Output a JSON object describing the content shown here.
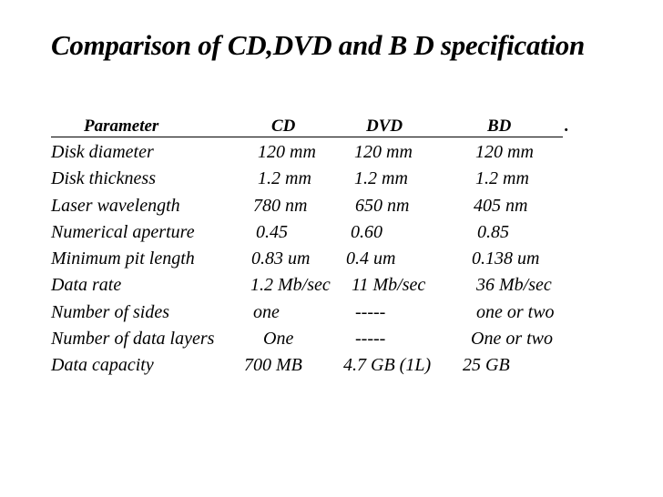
{
  "title": "Comparison of CD,DVD and B D specification",
  "table": {
    "headers": [
      "Parameter",
      "CD",
      "DVD",
      "BD"
    ],
    "header_trailing_mark": ".",
    "rows": [
      [
        "Disk diameter",
        "120 mm",
        "120 mm",
        "120 mm"
      ],
      [
        "Disk thickness",
        "1.2 mm",
        "1.2 mm",
        "1.2 mm"
      ],
      [
        "Laser wavelength",
        "780 nm",
        "650 nm",
        "405 nm"
      ],
      [
        "Numerical aperture",
        "0.45",
        "0.60",
        "0.85"
      ],
      [
        "Minimum pit length",
        "0.83 um",
        "0.4 um",
        "0.138 um"
      ],
      [
        "Data rate",
        "1.2 Mb/sec",
        "11 Mb/sec",
        "36 Mb/sec"
      ],
      [
        "Number of sides",
        "one",
        "-----",
        "one or two"
      ],
      [
        "Number of data layers",
        "One",
        "-----",
        "One or two"
      ],
      [
        "Data capacity",
        "700 MB",
        "4.7 GB (1L)",
        "25 GB"
      ]
    ]
  }
}
